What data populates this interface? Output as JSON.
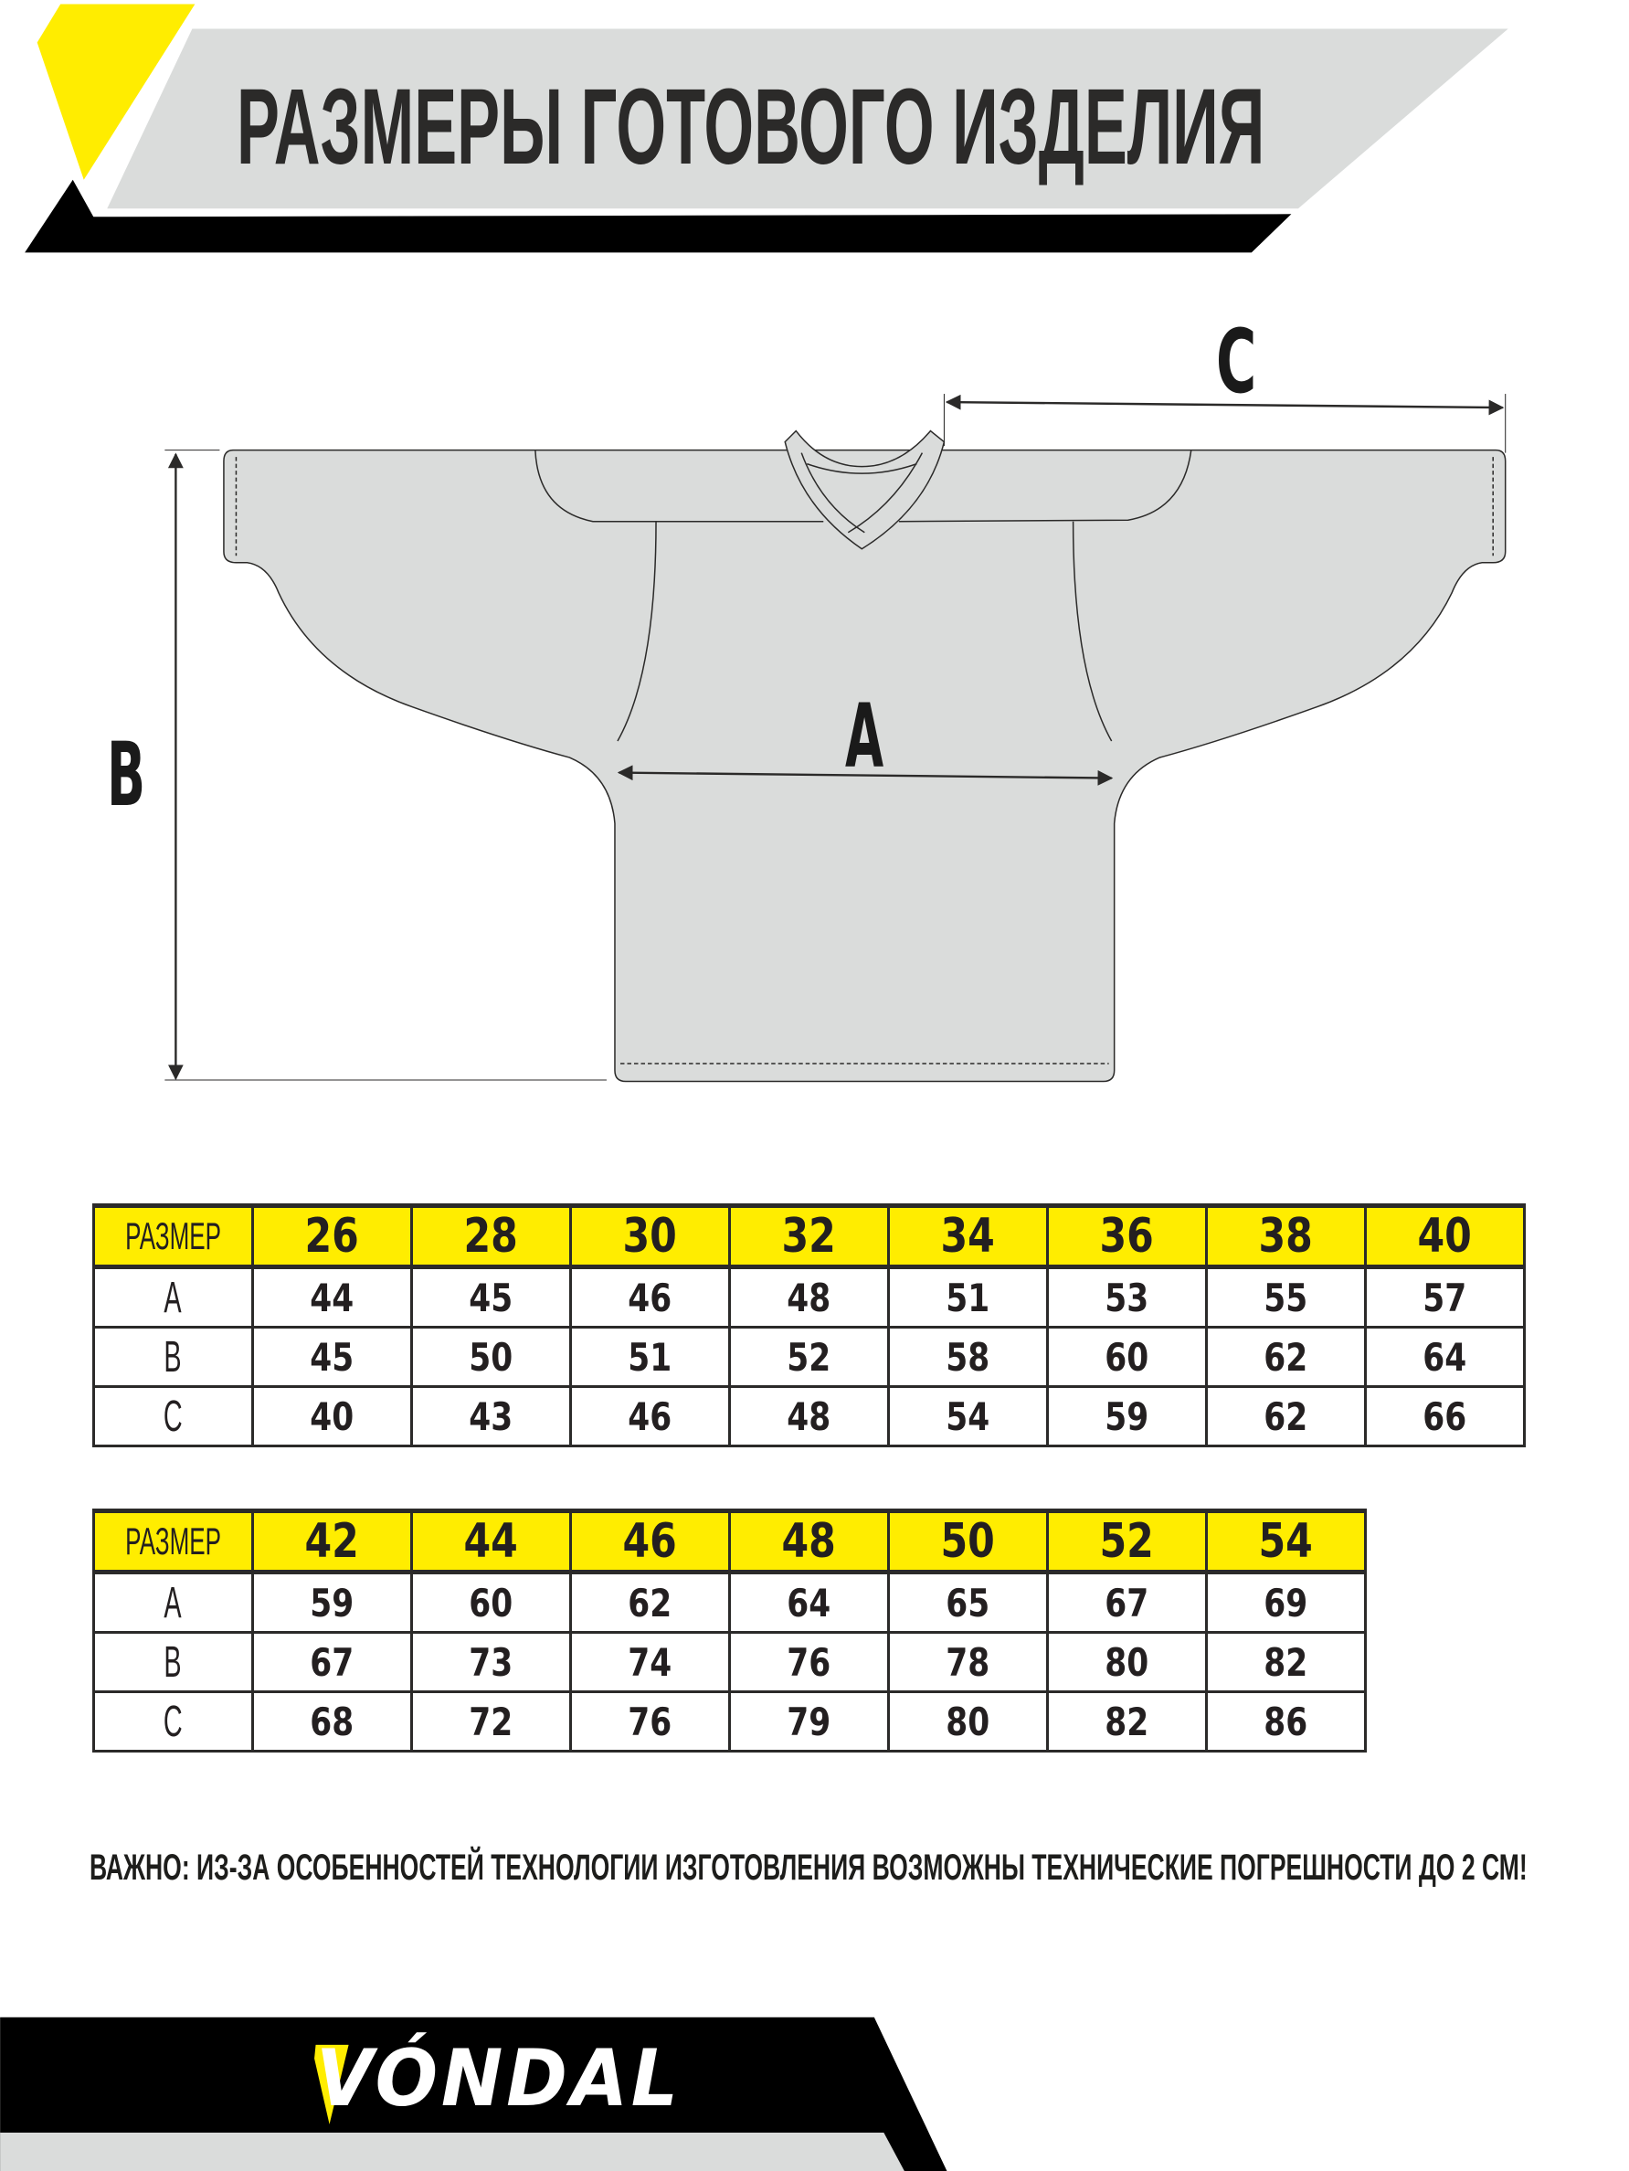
{
  "header": {
    "title": "РАЗМЕРЫ ГОТОВОГО ИЗДЕЛИЯ"
  },
  "diagram": {
    "label_a": "A",
    "label_b": "B",
    "label_c": "C"
  },
  "colors": {
    "accent_yellow": "#ffed00",
    "band_gray": "#dadcdb",
    "black": "#000000",
    "garment_fill": "#dadcdb"
  },
  "table1": {
    "header_label": "РАЗМЕР",
    "sizes": [
      "26",
      "28",
      "30",
      "32",
      "34",
      "36",
      "38",
      "40"
    ],
    "rows": [
      {
        "label": "A",
        "values": [
          "44",
          "45",
          "46",
          "48",
          "51",
          "53",
          "55",
          "57"
        ]
      },
      {
        "label": "B",
        "values": [
          "45",
          "50",
          "51",
          "52",
          "58",
          "60",
          "62",
          "64"
        ]
      },
      {
        "label": "C",
        "values": [
          "40",
          "43",
          "46",
          "48",
          "54",
          "59",
          "62",
          "66"
        ]
      }
    ]
  },
  "table2": {
    "header_label": "РАЗМЕР",
    "sizes": [
      "42",
      "44",
      "46",
      "48",
      "50",
      "52",
      "54"
    ],
    "rows": [
      {
        "label": "A",
        "values": [
          "59",
          "60",
          "62",
          "64",
          "65",
          "67",
          "69"
        ]
      },
      {
        "label": "B",
        "values": [
          "67",
          "73",
          "74",
          "76",
          "78",
          "80",
          "82"
        ]
      },
      {
        "label": "C",
        "values": [
          "68",
          "72",
          "76",
          "79",
          "80",
          "82",
          "86"
        ]
      }
    ]
  },
  "warning": "ВАЖНО: ИЗ-ЗА ОСОБЕННОСТЕЙ ТЕХНОЛОГИИ ИЗГОТОВЛЕНИЯ ВОЗМОЖНЫ ТЕХНИЧЕСКИЕ ПОГРЕШНОСТИ ДО 2 СМ!",
  "footer": {
    "logo_text": "VÓNDAL"
  }
}
